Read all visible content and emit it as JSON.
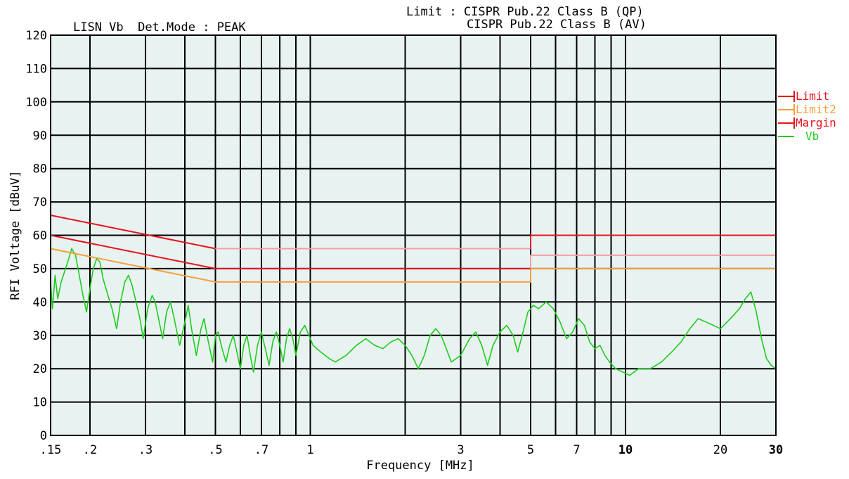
{
  "header": {
    "left": "LISN Vb  Det.Mode : PEAK",
    "limit_line1": "Limit : CISPR Pub.22 Class B (QP)",
    "limit_line2": "CISPR Pub.22 Class B (AV)"
  },
  "colors": {
    "plot_bg": "#e8f2f1",
    "grid": "#000000",
    "limit": "#e8121e",
    "limit2": "#f5a03c",
    "margin": "#e8121e",
    "margin_faded": "#f29ea4",
    "vb": "#1fcc1f"
  },
  "chart_data": {
    "type": "line",
    "xscale": "log",
    "xlim": [
      0.15,
      30
    ],
    "ylim": [
      0,
      120
    ],
    "xlabel": "Frequency [MHz]",
    "ylabel": "RFI Voltage [dBuV]",
    "grid": true,
    "legend_position": "right",
    "x_gridlines": [
      0.2,
      0.3,
      0.4,
      0.5,
      0.6,
      0.7,
      0.8,
      0.9,
      1,
      2,
      3,
      4,
      5,
      6,
      7,
      8,
      9,
      10,
      20
    ],
    "x_ticks": [
      {
        "value": 0.15,
        "label": ".15",
        "bold": false
      },
      {
        "value": 0.2,
        "label": ".2",
        "bold": false
      },
      {
        "value": 0.3,
        "label": ".3",
        "bold": false
      },
      {
        "value": 0.5,
        "label": ".5",
        "bold": false
      },
      {
        "value": 0.7,
        "label": ".7",
        "bold": false
      },
      {
        "value": 1,
        "label": "1",
        "bold": false
      },
      {
        "value": 3,
        "label": "3",
        "bold": false
      },
      {
        "value": 5,
        "label": "5",
        "bold": false
      },
      {
        "value": 7,
        "label": "7",
        "bold": false
      },
      {
        "value": 10,
        "label": "10",
        "bold": true
      },
      {
        "value": 20,
        "label": "20",
        "bold": false
      },
      {
        "value": 30,
        "label": "30",
        "bold": true
      }
    ],
    "y_ticks": [
      {
        "value": 0,
        "label": "0"
      },
      {
        "value": 10,
        "label": "10"
      },
      {
        "value": 20,
        "label": "20"
      },
      {
        "value": 30,
        "label": "30"
      },
      {
        "value": 40,
        "label": "40"
      },
      {
        "value": 50,
        "label": "50"
      },
      {
        "value": 60,
        "label": "60"
      },
      {
        "value": 70,
        "label": "70"
      },
      {
        "value": 80,
        "label": "80"
      },
      {
        "value": 90,
        "label": "90"
      },
      {
        "value": 100,
        "label": "100"
      },
      {
        "value": 110,
        "label": "110"
      },
      {
        "value": 120,
        "label": "120"
      }
    ],
    "series": [
      {
        "name": "Limit",
        "color": "#e8121e",
        "segments": [
          {
            "color": "#e8121e",
            "points": [
              [
                0.15,
                66
              ],
              [
                0.5,
                56
              ]
            ]
          },
          {
            "color": "#f29ea4",
            "points": [
              [
                0.5,
                56
              ],
              [
                5,
                56
              ]
            ]
          },
          {
            "color": "#e8121e",
            "points": [
              [
                5,
                56
              ],
              [
                5,
                60
              ],
              [
                30,
                60
              ]
            ]
          }
        ]
      },
      {
        "name": "Limit2",
        "color": "#f5a03c",
        "segments": [
          {
            "color": "#f5a03c",
            "points": [
              [
                0.15,
                56
              ],
              [
                0.5,
                46
              ],
              [
                5,
                46
              ],
              [
                5,
                50
              ],
              [
                30,
                50
              ]
            ]
          }
        ]
      },
      {
        "name": "Margin",
        "color": "#e8121e",
        "segments": [
          {
            "color": "#e8121e",
            "points": [
              [
                0.15,
                60
              ],
              [
                0.5,
                50
              ],
              [
                5,
                50
              ]
            ]
          },
          {
            "color": "#f29ea4",
            "points": [
              [
                5,
                50
              ],
              [
                5,
                54
              ],
              [
                30,
                54
              ]
            ]
          }
        ]
      },
      {
        "name": "Vb",
        "color": "#1fcc1f",
        "points": [
          [
            0.15,
            46
          ],
          [
            0.152,
            38
          ],
          [
            0.155,
            48
          ],
          [
            0.158,
            41
          ],
          [
            0.162,
            46
          ],
          [
            0.166,
            49
          ],
          [
            0.17,
            52
          ],
          [
            0.175,
            56
          ],
          [
            0.18,
            54
          ],
          [
            0.185,
            48
          ],
          [
            0.19,
            42
          ],
          [
            0.195,
            37
          ],
          [
            0.2,
            44
          ],
          [
            0.205,
            50
          ],
          [
            0.21,
            53
          ],
          [
            0.215,
            52
          ],
          [
            0.22,
            47
          ],
          [
            0.228,
            42
          ],
          [
            0.235,
            38
          ],
          [
            0.243,
            32
          ],
          [
            0.25,
            40
          ],
          [
            0.258,
            46
          ],
          [
            0.265,
            48
          ],
          [
            0.272,
            45
          ],
          [
            0.28,
            40
          ],
          [
            0.288,
            35
          ],
          [
            0.295,
            29
          ],
          [
            0.305,
            38
          ],
          [
            0.315,
            42
          ],
          [
            0.322,
            40
          ],
          [
            0.33,
            35
          ],
          [
            0.34,
            29
          ],
          [
            0.35,
            37
          ],
          [
            0.36,
            40
          ],
          [
            0.37,
            35
          ],
          [
            0.385,
            27
          ],
          [
            0.4,
            34
          ],
          [
            0.41,
            39
          ],
          [
            0.42,
            32
          ],
          [
            0.435,
            24
          ],
          [
            0.45,
            32
          ],
          [
            0.46,
            35
          ],
          [
            0.475,
            28
          ],
          [
            0.49,
            22
          ],
          [
            0.5,
            30
          ],
          [
            0.51,
            31
          ],
          [
            0.525,
            26
          ],
          [
            0.54,
            22
          ],
          [
            0.555,
            27
          ],
          [
            0.57,
            30
          ],
          [
            0.585,
            25
          ],
          [
            0.6,
            20
          ],
          [
            0.615,
            27
          ],
          [
            0.63,
            30
          ],
          [
            0.645,
            24
          ],
          [
            0.66,
            19
          ],
          [
            0.68,
            27
          ],
          [
            0.7,
            31
          ],
          [
            0.72,
            26
          ],
          [
            0.74,
            21
          ],
          [
            0.76,
            28
          ],
          [
            0.78,
            31
          ],
          [
            0.8,
            27
          ],
          [
            0.82,
            22
          ],
          [
            0.84,
            29
          ],
          [
            0.86,
            32
          ],
          [
            0.88,
            29
          ],
          [
            0.9,
            24
          ],
          [
            0.93,
            31
          ],
          [
            0.96,
            33
          ],
          [
            0.99,
            30
          ],
          [
            1.02,
            27
          ],
          [
            1.08,
            25
          ],
          [
            1.15,
            23
          ],
          [
            1.2,
            22
          ],
          [
            1.3,
            24
          ],
          [
            1.4,
            27
          ],
          [
            1.5,
            29
          ],
          [
            1.6,
            27
          ],
          [
            1.7,
            26
          ],
          [
            1.8,
            28
          ],
          [
            1.9,
            29
          ],
          [
            2.0,
            27
          ],
          [
            2.1,
            24
          ],
          [
            2.2,
            20
          ],
          [
            2.3,
            24
          ],
          [
            2.4,
            30
          ],
          [
            2.5,
            32
          ],
          [
            2.6,
            30
          ],
          [
            2.7,
            26
          ],
          [
            2.8,
            22
          ],
          [
            3.0,
            24
          ],
          [
            3.2,
            29
          ],
          [
            3.35,
            31
          ],
          [
            3.5,
            27
          ],
          [
            3.65,
            21
          ],
          [
            3.8,
            27
          ],
          [
            4.0,
            31
          ],
          [
            4.2,
            33
          ],
          [
            4.4,
            30
          ],
          [
            4.55,
            25
          ],
          [
            4.7,
            30
          ],
          [
            4.9,
            37
          ],
          [
            5.1,
            39
          ],
          [
            5.3,
            38
          ],
          [
            5.6,
            40
          ],
          [
            5.9,
            38
          ],
          [
            6.2,
            34
          ],
          [
            6.5,
            29
          ],
          [
            6.8,
            31
          ],
          [
            7.1,
            35
          ],
          [
            7.4,
            33
          ],
          [
            7.7,
            28
          ],
          [
            8.0,
            26
          ],
          [
            8.3,
            27
          ],
          [
            8.6,
            24
          ],
          [
            8.9,
            22
          ],
          [
            9.3,
            20
          ],
          [
            9.8,
            19
          ],
          [
            10.3,
            18
          ],
          [
            11,
            20
          ],
          [
            12,
            20
          ],
          [
            13,
            22
          ],
          [
            14,
            25
          ],
          [
            15,
            28
          ],
          [
            16,
            32
          ],
          [
            17,
            35
          ],
          [
            18,
            34
          ],
          [
            19,
            33
          ],
          [
            20,
            32
          ],
          [
            21,
            34
          ],
          [
            22,
            36
          ],
          [
            23,
            38
          ],
          [
            24,
            41
          ],
          [
            25,
            43
          ],
          [
            26,
            37
          ],
          [
            27,
            29
          ],
          [
            28,
            23
          ],
          [
            29,
            21
          ],
          [
            30,
            20
          ]
        ]
      }
    ]
  }
}
